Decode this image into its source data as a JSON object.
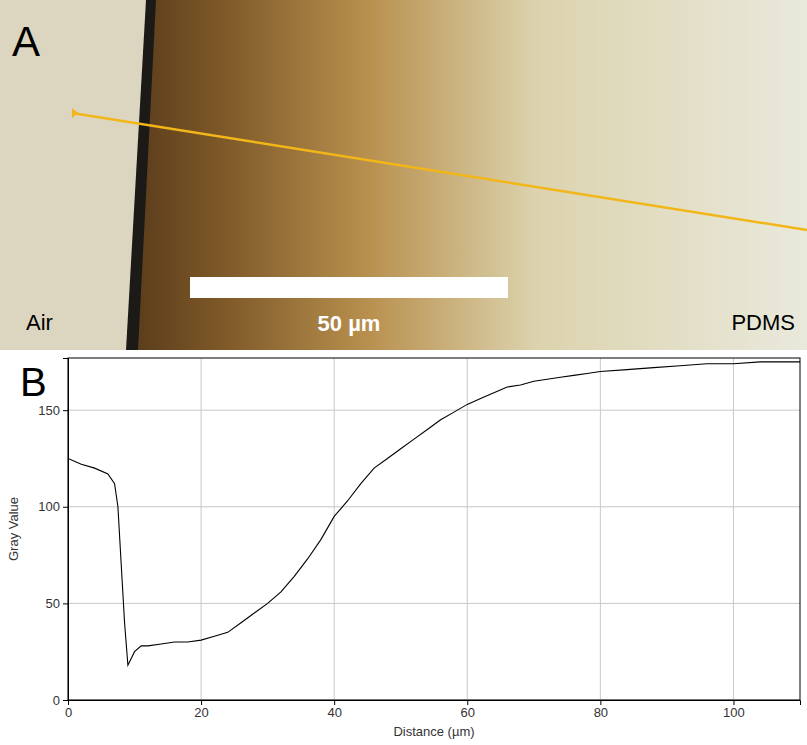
{
  "panel_a": {
    "letter": "A",
    "left_label": "Air",
    "right_label": "PDMS",
    "scale_bar_label": "50 µm"
  },
  "panel_b": {
    "letter": "B"
  },
  "chart_data": {
    "type": "line",
    "x_label": "Distance (µm)",
    "y_label": "Gray Value",
    "x": [
      0,
      2,
      4,
      6,
      7,
      7.5,
      8,
      8.5,
      9,
      10,
      11,
      12,
      14,
      16,
      18,
      20,
      22,
      24,
      26,
      28,
      30,
      32,
      34,
      36,
      38,
      40,
      42,
      44,
      46,
      48,
      50,
      52,
      54,
      56,
      58,
      60,
      62,
      64,
      66,
      68,
      70,
      72,
      74,
      76,
      78,
      80,
      84,
      88,
      92,
      96,
      100,
      104,
      108,
      110
    ],
    "values": [
      125,
      122,
      120,
      117,
      112,
      100,
      70,
      40,
      18,
      25,
      28,
      28,
      29,
      30,
      30,
      31,
      33,
      35,
      40,
      45,
      50,
      56,
      64,
      73,
      83,
      95,
      103,
      112,
      120,
      125,
      130,
      135,
      140,
      145,
      149,
      153,
      156,
      159,
      162,
      163,
      165,
      166,
      167,
      168,
      169,
      170,
      171,
      172,
      173,
      174,
      174,
      175,
      175,
      175
    ],
    "color": "#000000",
    "xlim": [
      0,
      110
    ],
    "xticks": [
      0,
      20,
      40,
      60,
      80,
      100
    ],
    "ylim": [
      0,
      177
    ],
    "yticks": [
      0,
      50,
      100,
      150
    ],
    "grid": true
  }
}
